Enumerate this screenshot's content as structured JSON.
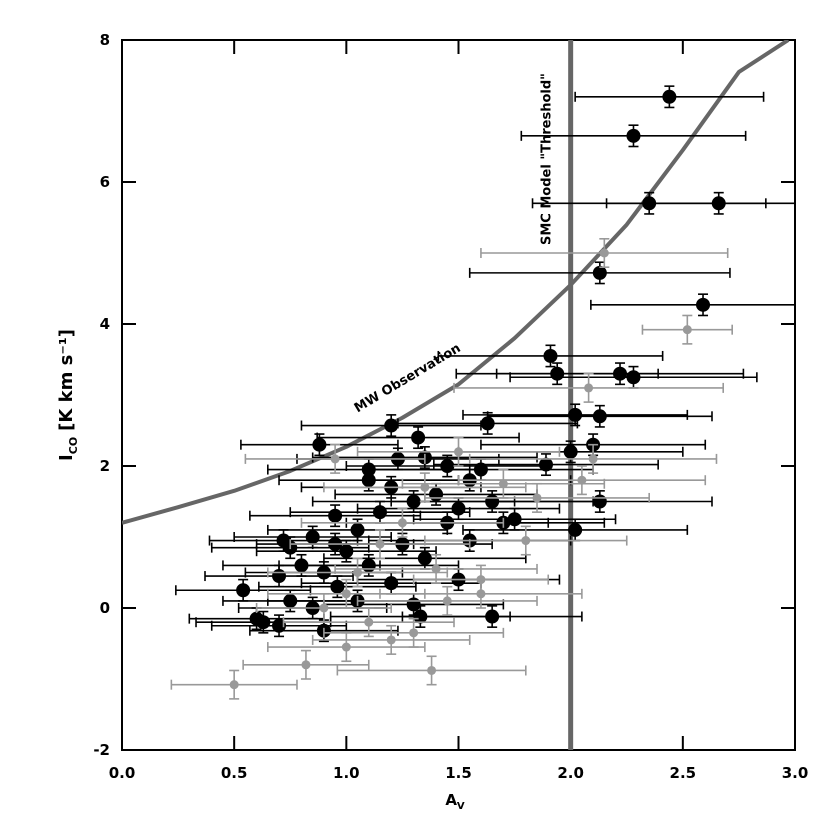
{
  "chart_data": {
    "type": "scatter",
    "xlabel_symbol": "A",
    "xlabel_subscript": "V",
    "ylabel_symbol": "I",
    "ylabel_subscript": "CO",
    "ylabel_units": "[K km s⁻¹]",
    "xlim": [
      0,
      3
    ],
    "ylim": [
      -2,
      8
    ],
    "xticks": [
      {
        "value": 0,
        "label": "0.0"
      },
      0.5,
      {
        "value": 1,
        "label": "1.0"
      },
      1.5,
      {
        "value": 2,
        "label": "2.0"
      },
      2.5,
      {
        "value": 3,
        "label": "3.0"
      }
    ],
    "yticks": [
      -2,
      0,
      2,
      4,
      6,
      8
    ],
    "curve": {
      "name": "MW Observation",
      "color": "#666666",
      "x": [
        0,
        0.25,
        0.5,
        0.75,
        1.0,
        1.25,
        1.5,
        1.75,
        2.0,
        2.25,
        2.5,
        2.75,
        2.97
      ],
      "values": [
        1.2,
        1.42,
        1.65,
        1.93,
        2.27,
        2.68,
        3.15,
        3.8,
        4.55,
        5.4,
        6.45,
        7.55,
        8.0
      ]
    },
    "threshold": {
      "x": 2.0,
      "label": "SMC Model \"Threshold\"",
      "color": "#666666"
    },
    "series": [
      {
        "color": "#000000",
        "yerr": 0.15,
        "x": [
          2.44,
          2.28,
          2.35,
          2.66,
          2.13,
          2.59,
          1.91,
          1.94,
          2.22,
          2.28,
          2.02,
          2.13,
          0.88,
          1.2,
          1.32,
          1.63,
          1.1,
          1.23,
          1.35,
          1.45,
          1.6,
          1.89,
          2.0,
          2.1,
          2.13,
          2.02,
          1.75,
          1.65,
          1.55,
          1.4,
          1.3,
          1.2,
          1.15,
          1.05,
          0.95,
          0.85,
          0.75,
          0.72,
          0.8,
          0.9,
          1.0,
          1.1,
          1.25,
          1.35,
          1.45,
          1.55,
          0.54,
          0.6,
          0.63,
          0.7,
          0.75,
          0.85,
          0.9,
          0.96,
          1.05,
          1.2,
          1.3,
          1.33,
          1.65,
          1.5,
          1.1,
          1.5,
          1.7,
          0.7,
          0.95
        ],
        "values": [
          7.2,
          6.65,
          5.7,
          5.7,
          4.72,
          4.27,
          3.55,
          3.3,
          3.3,
          3.25,
          2.72,
          2.7,
          2.3,
          2.57,
          2.4,
          2.6,
          1.95,
          2.1,
          2.12,
          2.0,
          1.95,
          2.02,
          2.2,
          2.3,
          1.5,
          1.1,
          1.25,
          1.5,
          1.8,
          1.6,
          1.5,
          1.7,
          1.35,
          1.1,
          0.9,
          1.0,
          0.85,
          0.95,
          0.6,
          0.5,
          0.8,
          0.6,
          0.9,
          0.7,
          1.2,
          0.95,
          0.25,
          -0.15,
          -0.2,
          -0.25,
          0.1,
          0.0,
          -0.32,
          0.3,
          0.1,
          0.35,
          0.05,
          -0.12,
          -0.12,
          0.4,
          1.8,
          1.4,
          1.2,
          0.45,
          1.3
        ],
        "xerr": [
          0.42,
          0.5,
          0.52,
          0.5,
          0.58,
          0.5,
          0.5,
          0.45,
          0.55,
          0.55,
          0.5,
          0.5,
          0.35,
          0.4,
          0.45,
          0.4,
          0.45,
          0.45,
          0.5,
          0.45,
          0.5,
          0.5,
          0.5,
          0.5,
          0.5,
          0.5,
          0.45,
          0.45,
          0.45,
          0.45,
          0.45,
          0.4,
          0.4,
          0.4,
          0.35,
          0.35,
          0.35,
          0.33,
          0.35,
          0.35,
          0.4,
          0.4,
          0.4,
          0.45,
          0.45,
          0.45,
          0.3,
          0.3,
          0.3,
          0.3,
          0.3,
          0.33,
          0.33,
          0.35,
          0.4,
          0.4,
          0.4,
          0.4,
          0.4,
          0.45,
          0.4,
          0.45,
          0.45,
          0.33,
          0.38
        ]
      },
      {
        "color": "#999999",
        "yerr": 0.2,
        "x": [
          0.5,
          0.82,
          1.0,
          1.2,
          1.38,
          1.3,
          1.1,
          1.6,
          1.45,
          1.0,
          0.9,
          2.15,
          2.52,
          2.08,
          2.1,
          2.05,
          1.85,
          1.7,
          1.5,
          1.35,
          1.25,
          1.15,
          1.05,
          0.95,
          1.4,
          1.8,
          1.6
        ],
        "values": [
          -1.08,
          -0.8,
          -0.55,
          -0.45,
          -0.88,
          -0.35,
          -0.2,
          0.4,
          0.1,
          0.2,
          0.0,
          5.0,
          3.92,
          3.1,
          2.1,
          1.8,
          1.55,
          1.75,
          2.2,
          1.7,
          1.2,
          0.9,
          0.5,
          2.1,
          0.55,
          0.95,
          0.2
        ],
        "xerr": [
          0.28,
          0.28,
          0.35,
          0.35,
          0.42,
          0.4,
          0.38,
          0.3,
          0.4,
          0.35,
          0.3,
          0.55,
          0.2,
          0.6,
          0.55,
          0.55,
          0.5,
          0.45,
          0.45,
          0.45,
          0.45,
          0.4,
          0.4,
          0.4,
          0.45,
          0.45,
          0.45
        ]
      }
    ]
  }
}
